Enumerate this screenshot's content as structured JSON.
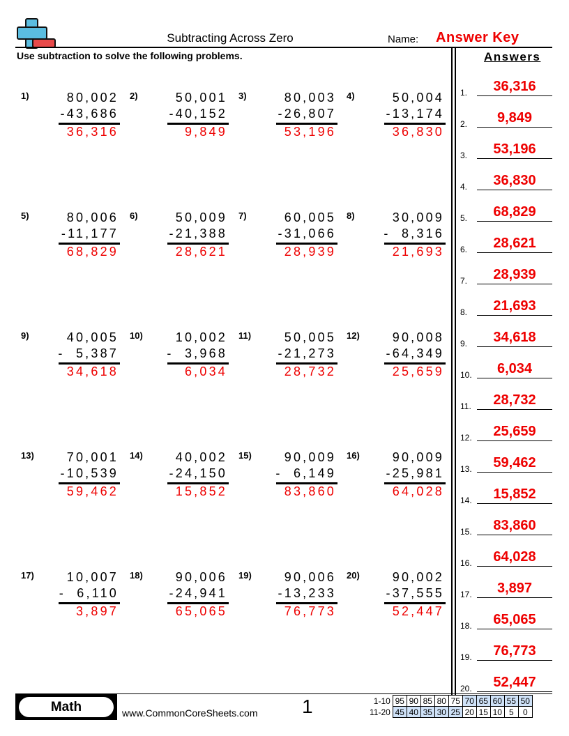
{
  "header": {
    "title": "Subtracting Across Zero",
    "name_label": "Name:",
    "name_value": "Answer Key",
    "instructions": "Use subtraction to solve the following problems."
  },
  "answers_title": "Answers",
  "problems": [
    {
      "n": "1)",
      "top": "80,002",
      "bottom": "-43,686",
      "answer": "36,316"
    },
    {
      "n": "2)",
      "top": "50,001",
      "bottom": "-40,152",
      "answer": "9,849"
    },
    {
      "n": "3)",
      "top": "80,003",
      "bottom": "-26,807",
      "answer": "53,196"
    },
    {
      "n": "4)",
      "top": "50,004",
      "bottom": "-13,174",
      "answer": "36,830"
    },
    {
      "n": "5)",
      "top": "80,006",
      "bottom": "-11,177",
      "answer": "68,829"
    },
    {
      "n": "6)",
      "top": "50,009",
      "bottom": "-21,388",
      "answer": "28,621"
    },
    {
      "n": "7)",
      "top": "60,005",
      "bottom": "-31,066",
      "answer": "28,939"
    },
    {
      "n": "8)",
      "top": "30,009",
      "bottom": "-  8,316",
      "answer": "21,693"
    },
    {
      "n": "9)",
      "top": "40,005",
      "bottom": "-  5,387",
      "answer": "34,618"
    },
    {
      "n": "10)",
      "top": "10,002",
      "bottom": "-  3,968",
      "answer": "6,034"
    },
    {
      "n": "11)",
      "top": "50,005",
      "bottom": "-21,273",
      "answer": "28,732"
    },
    {
      "n": "12)",
      "top": "90,008",
      "bottom": "-64,349",
      "answer": "25,659"
    },
    {
      "n": "13)",
      "top": "70,001",
      "bottom": "-10,539",
      "answer": "59,462"
    },
    {
      "n": "14)",
      "top": "40,002",
      "bottom": "-24,150",
      "answer": "15,852"
    },
    {
      "n": "15)",
      "top": "90,009",
      "bottom": "-  6,149",
      "answer": "83,860"
    },
    {
      "n": "16)",
      "top": "90,009",
      "bottom": "-25,981",
      "answer": "64,028"
    },
    {
      "n": "17)",
      "top": "10,007",
      "bottom": "-  6,110",
      "answer": "3,897"
    },
    {
      "n": "18)",
      "top": "90,006",
      "bottom": "-24,941",
      "answer": "65,065"
    },
    {
      "n": "19)",
      "top": "90,006",
      "bottom": "-13,233",
      "answer": "76,773"
    },
    {
      "n": "20)",
      "top": "90,002",
      "bottom": "-37,555",
      "answer": "52,447"
    }
  ],
  "answer_key": [
    {
      "n": "1.",
      "v": "36,316"
    },
    {
      "n": "2.",
      "v": "9,849"
    },
    {
      "n": "3.",
      "v": "53,196"
    },
    {
      "n": "4.",
      "v": "36,830"
    },
    {
      "n": "5.",
      "v": "68,829"
    },
    {
      "n": "6.",
      "v": "28,621"
    },
    {
      "n": "7.",
      "v": "28,939"
    },
    {
      "n": "8.",
      "v": "21,693"
    },
    {
      "n": "9.",
      "v": "34,618"
    },
    {
      "n": "10.",
      "v": "6,034"
    },
    {
      "n": "11.",
      "v": "28,732"
    },
    {
      "n": "12.",
      "v": "25,659"
    },
    {
      "n": "13.",
      "v": "59,462"
    },
    {
      "n": "14.",
      "v": "15,852"
    },
    {
      "n": "15.",
      "v": "83,860"
    },
    {
      "n": "16.",
      "v": "64,028"
    },
    {
      "n": "17.",
      "v": "3,897"
    },
    {
      "n": "18.",
      "v": "65,065"
    },
    {
      "n": "19.",
      "v": "76,773"
    },
    {
      "n": "20.",
      "v": "52,447"
    }
  ],
  "footer": {
    "subject": "Math",
    "website": "www.CommonCoreSheets.com",
    "page": "1",
    "score_rows": [
      {
        "label": "1-10",
        "cells": [
          "95",
          "90",
          "85",
          "80",
          "75",
          "70",
          "65",
          "60",
          "55",
          "50"
        ],
        "highlight": [
          false,
          false,
          false,
          false,
          false,
          true,
          true,
          true,
          true,
          true
        ]
      },
      {
        "label": "11-20",
        "cells": [
          "45",
          "40",
          "35",
          "30",
          "25",
          "20",
          "15",
          "10",
          "5",
          "0"
        ],
        "highlight": [
          true,
          true,
          true,
          true,
          true,
          false,
          false,
          false,
          false,
          false
        ]
      }
    ]
  },
  "colors": {
    "answer": "#ee0000",
    "logo_plus": "#5bbde0",
    "logo_minus": "#e84a4a",
    "score_highlight": "#cfe2f8"
  }
}
